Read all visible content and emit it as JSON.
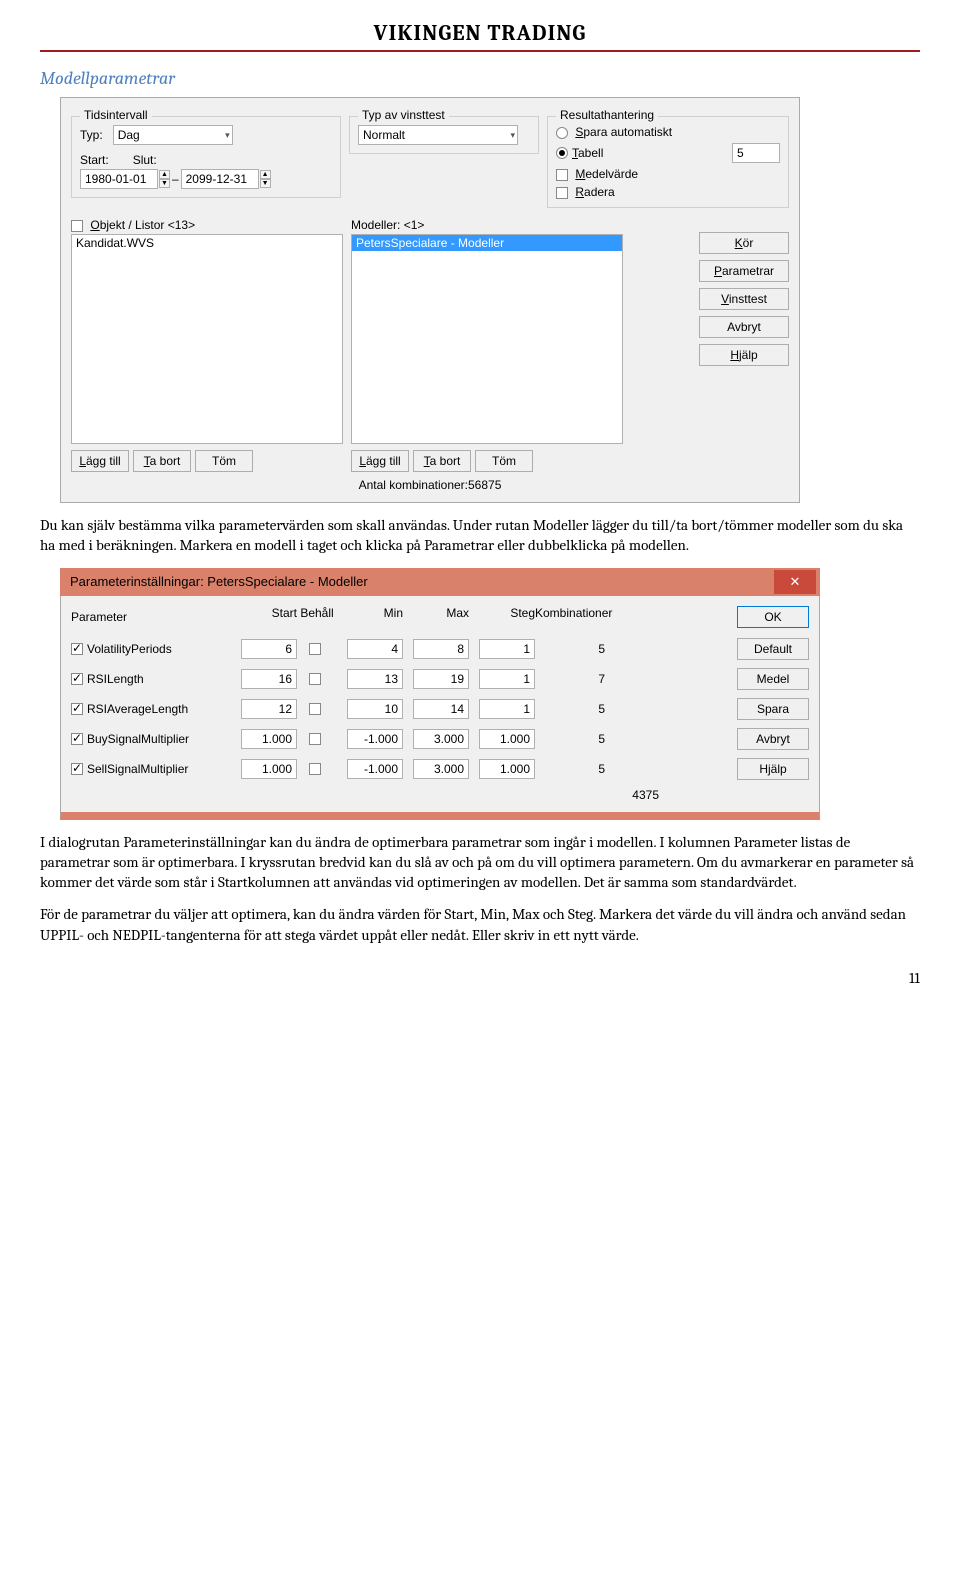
{
  "page": {
    "title": "VIKINGEN TRADING",
    "section": "Modellparametrar",
    "para1": "Du kan själv bestämma vilka parametervärden som skall användas. Under rutan Modeller lägger du till/ta bort/tömmer modeller som du ska ha med i beräkningen. Markera en modell i taget och klicka på Parametrar eller dubbelklicka på modellen.",
    "para2": "I dialogrutan Parameterinställningar kan du ändra de optimerbara parametrar som ingår i modellen. I kolumnen Parameter listas de parametrar som är optimerbara. I kryssrutan bredvid kan du slå av och på om du vill optimera parametern. Om du avmarkerar en parameter så kommer det värde som står i Startkolumnen att användas vid optimeringen av modellen.  Det är samma som standardvärdet.",
    "para3": "För de parametrar du väljer att optimera, kan du ändra värden för Start, Min, Max och Steg. Markera det värde du vill ändra och använd sedan UPPIL- och NEDPIL-tangenterna för att stega värdet uppåt eller nedåt.  Eller skriv in ett nytt värde.",
    "pagenum": "11"
  },
  "dlg1": {
    "tids": {
      "title": "Tidsintervall",
      "typ_label": "Typ:",
      "typ_value": "Dag",
      "start_label": "Start:",
      "slut_label": "Slut:",
      "start_value": "1980-01-01",
      "slut_value": "2099-12-31"
    },
    "vinst": {
      "title": "Typ av vinsttest",
      "value": "Normalt"
    },
    "result": {
      "title": "Resultathantering",
      "spara": "Spara automatiskt",
      "tabell": "Tabell",
      "tabell_value": "5",
      "medel": "Medelvärde",
      "radera": "Radera"
    },
    "lists": {
      "objekt_label": "Objekt / Listor <13>",
      "objekt_item": "Kandidat.WVS",
      "modeller_label": "Modeller: <1>",
      "modeller_item": "PetersSpecialare - Modeller",
      "lagg": "Lägg till",
      "tabort": "Ta bort",
      "tom": "Töm"
    },
    "btns": {
      "kor": "Kör",
      "param": "Parametrar",
      "vinst": "Vinsttest",
      "avbryt": "Avbryt",
      "hjalp": "Hjälp"
    },
    "footer": "Antal kombinationer:56875"
  },
  "dlg2": {
    "title": "Parameterinställningar:  PetersSpecialare - Modeller",
    "cols": {
      "param": "Parameter",
      "start": "Start",
      "behall": "Behåll",
      "min": "Min",
      "max": "Max",
      "steg": "Steg",
      "komb": "Kombinationer"
    },
    "rows": [
      {
        "name": "VolatilityPeriods",
        "start": "6",
        "min": "4",
        "max": "8",
        "steg": "1",
        "komb": "5"
      },
      {
        "name": "RSILength",
        "start": "16",
        "min": "13",
        "max": "19",
        "steg": "1",
        "komb": "7"
      },
      {
        "name": "RSIAverageLength",
        "start": "12",
        "min": "10",
        "max": "14",
        "steg": "1",
        "komb": "5"
      },
      {
        "name": "BuySignalMultiplier",
        "start": "1.000",
        "min": "-1.000",
        "max": "3.000",
        "steg": "1.000",
        "komb": "5"
      },
      {
        "name": "SellSignalMultiplier",
        "start": "1.000",
        "min": "-1.000",
        "max": "3.000",
        "steg": "1.000",
        "komb": "5"
      }
    ],
    "btns": {
      "ok": "OK",
      "default": "Default",
      "medel": "Medel",
      "spara": "Spara",
      "avbryt": "Avbryt",
      "hjalp": "Hjälp"
    },
    "total": "4375"
  }
}
